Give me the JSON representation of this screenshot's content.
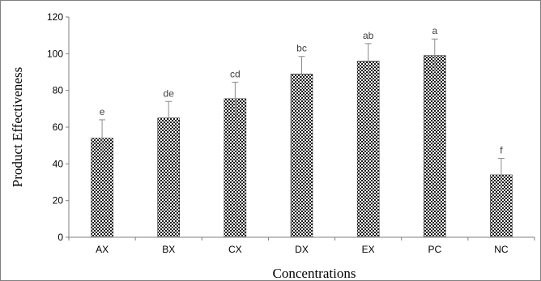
{
  "chart_data": {
    "type": "bar",
    "title": "",
    "xlabel": "Concentrations",
    "ylabel": "Product Effectiveness",
    "ylim": [
      0,
      120
    ],
    "yticks": [
      0,
      20,
      40,
      60,
      80,
      100,
      120
    ],
    "grid": false,
    "legend": "none",
    "categories": [
      "AX",
      "BX",
      "CX",
      "DX",
      "EX",
      "PC",
      "NC"
    ],
    "values": [
      54,
      65,
      75.5,
      89,
      96,
      99,
      34
    ],
    "errors": [
      10,
      9,
      9,
      9.5,
      9.5,
      9,
      9
    ],
    "significance_letters": [
      "e",
      "de",
      "cd",
      "bc",
      "ab",
      "a",
      "f"
    ],
    "bar_fill": "checkerboard",
    "colors": {
      "bar_dark": "#1a1a1a",
      "bar_light": "#ffffff",
      "axis": "#7f7f7f",
      "error_bar": "#8c8c8c"
    }
  }
}
